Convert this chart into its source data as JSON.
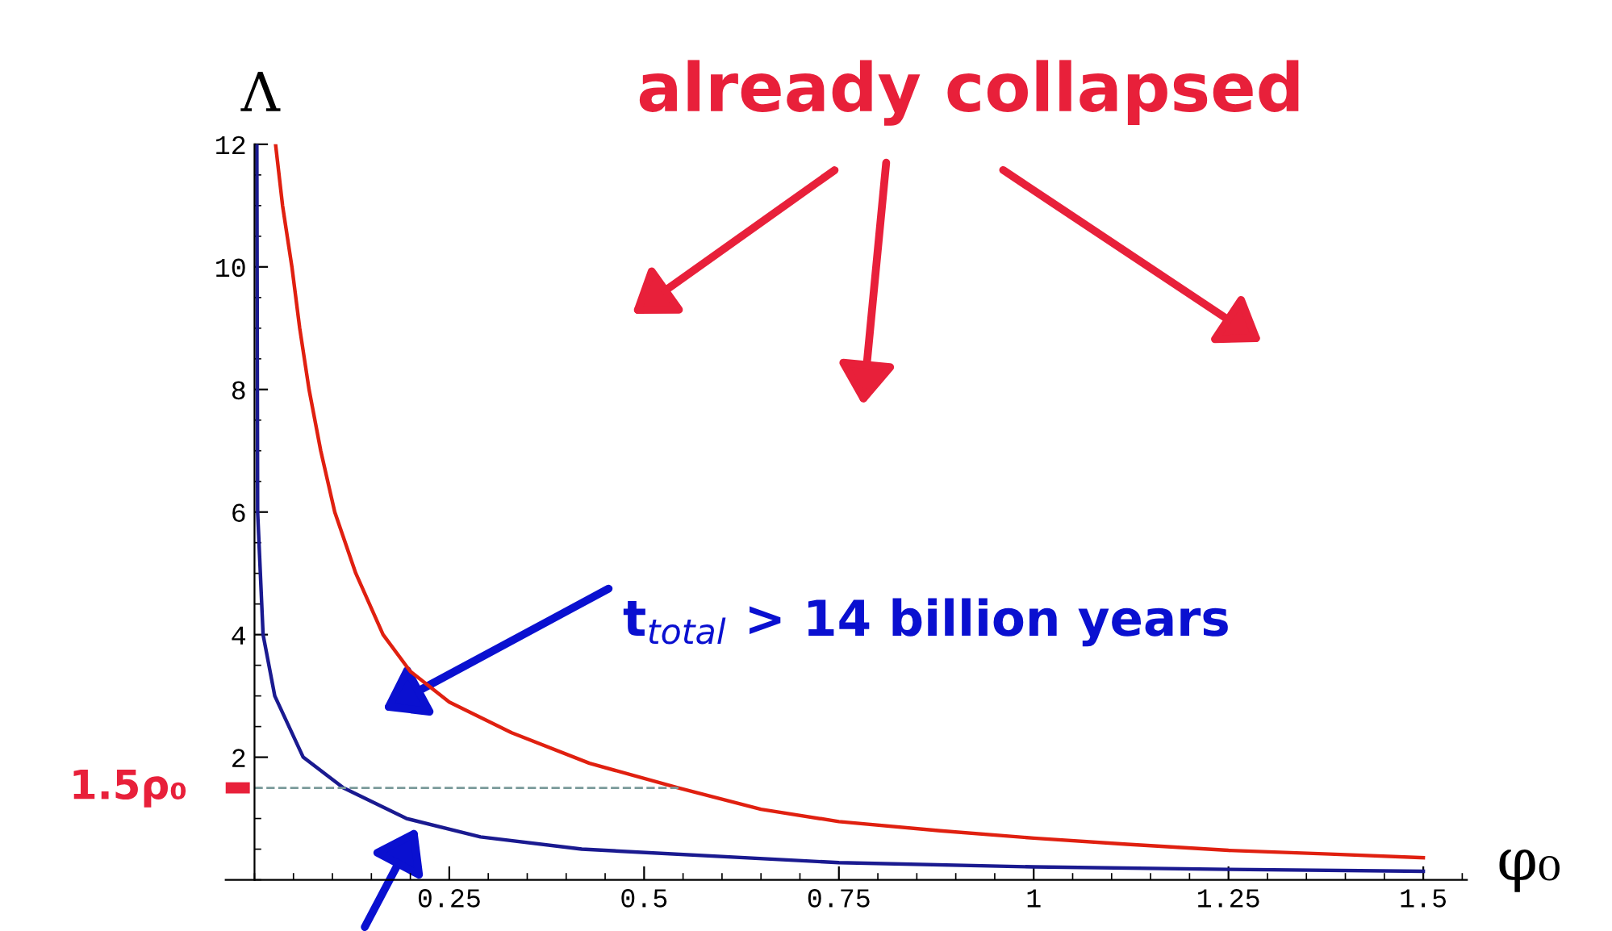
{
  "chart_data": {
    "type": "line",
    "xlabel": "φ₀",
    "ylabel": "Λ",
    "xlim": [
      -0.037,
      1.556
    ],
    "ylim": [
      0,
      12
    ],
    "xticks": [
      0.25,
      0.5,
      0.75,
      1,
      1.25,
      1.5
    ],
    "yticks": [
      2,
      4,
      6,
      8,
      10,
      12
    ],
    "grid": false,
    "marker": "none",
    "line_style": "solid",
    "series": [
      {
        "color": "#e02010",
        "x": [
          0.027,
          0.036,
          0.048,
          0.058,
          0.07,
          0.085,
          0.103,
          0.13,
          0.165,
          0.2,
          0.25,
          0.33,
          0.43,
          0.544,
          0.65,
          0.75,
          0.88,
          1.0,
          1.12,
          1.25,
          1.38,
          1.5
        ],
        "values": [
          12,
          11,
          10,
          9,
          8,
          7,
          6,
          5,
          4,
          3.4,
          2.9,
          2.4,
          1.9,
          1.5,
          1.15,
          0.95,
          0.8,
          0.68,
          0.58,
          0.48,
          0.42,
          0.36
        ]
      },
      {
        "color": "#1a1a90",
        "x": [
          0.003,
          0.004,
          0.011,
          0.026,
          0.0625,
          0.114,
          0.195,
          0.29,
          0.42,
          0.75,
          1.0,
          1.25,
          1.5
        ],
        "values": [
          12,
          6,
          4,
          3,
          2,
          1.5,
          1,
          0.7,
          0.5,
          0.28,
          0.21,
          0.17,
          0.14
        ]
      },
      {
        "color": "#7a9a9a",
        "line_style": "dashed",
        "x": [
          0,
          0.544
        ],
        "values": [
          1.5,
          1.5
        ]
      }
    ],
    "annotations": [
      {
        "text": "already collapsed"
      },
      {
        "text": "t$_{total}$ > 14 billion years"
      },
      {
        "text": "1.5ρ₀",
        "x": 0,
        "y": 1.5
      }
    ]
  }
}
